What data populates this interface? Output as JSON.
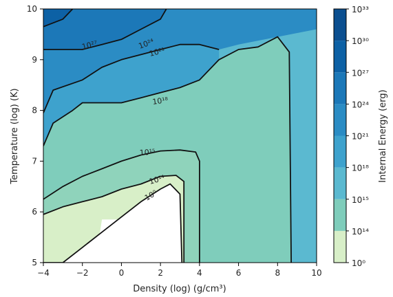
{
  "chart_data": {
    "type": "contour",
    "xlabel": "Density (log) (g/cm³)",
    "ylabel": "Temperature (log) (K)",
    "xlim": [
      -4,
      10
    ],
    "ylim": [
      5,
      10
    ],
    "xticks": [
      "−4",
      "−2",
      "0",
      "2",
      "4",
      "6",
      "8",
      "10"
    ],
    "yticks": [
      "5",
      "6",
      "7",
      "8",
      "9",
      "10"
    ],
    "colorbar": {
      "label": "Internal Energy (erg)",
      "levels": [
        "10⁰",
        "10¹⁴",
        "10¹⁵",
        "10¹⁸",
        "10²¹",
        "10²⁴",
        "10²⁷",
        "10³⁰",
        "10³³"
      ],
      "colors": [
        "#d8efc8",
        "#7fcdbb",
        "#5bb9d0",
        "#3ea2cd",
        "#2b8cc4",
        "#1c78b8",
        "#0d61a5",
        "#0b4f90"
      ]
    },
    "contour_labels": [
      "10²⁷",
      "10²⁴",
      "10²¹",
      "10¹⁸",
      "10¹⁵",
      "10¹⁴",
      "10⁰"
    ],
    "contours": [
      {
        "level": "10⁰",
        "points": [
          [
            -4,
            5.0
          ],
          [
            -3,
            5.0
          ],
          [
            -2,
            5.3
          ],
          [
            -1,
            5.6
          ],
          [
            0,
            5.9
          ],
          [
            1,
            6.2
          ],
          [
            2,
            6.45
          ],
          [
            2.5,
            6.55
          ],
          [
            3.0,
            6.35
          ],
          [
            3.1,
            5.0
          ]
        ]
      },
      {
        "level": "10¹⁴",
        "points": [
          [
            -4,
            5.95
          ],
          [
            -3,
            6.1
          ],
          [
            -2,
            6.2
          ],
          [
            -1,
            6.3
          ],
          [
            0,
            6.45
          ],
          [
            1,
            6.55
          ],
          [
            2,
            6.7
          ],
          [
            2.8,
            6.72
          ],
          [
            3.2,
            6.6
          ],
          [
            3.2,
            5.0
          ]
        ]
      },
      {
        "level": "10¹⁵",
        "points": [
          [
            -4,
            6.25
          ],
          [
            -3,
            6.5
          ],
          [
            -2,
            6.7
          ],
          [
            -1,
            6.85
          ],
          [
            0,
            7.0
          ],
          [
            1,
            7.12
          ],
          [
            2,
            7.2
          ],
          [
            3,
            7.22
          ],
          [
            3.8,
            7.18
          ],
          [
            4.0,
            7.0
          ],
          [
            4.0,
            5.0
          ]
        ]
      },
      {
        "level": "10¹⁸",
        "points": [
          [
            -4,
            7.3
          ],
          [
            -3.5,
            7.75
          ],
          [
            -2.5,
            8.0
          ],
          [
            -2,
            8.15
          ],
          [
            -1,
            8.15
          ],
          [
            0,
            8.15
          ],
          [
            1,
            8.25
          ],
          [
            2,
            8.35
          ],
          [
            3,
            8.45
          ],
          [
            4,
            8.6
          ],
          [
            5,
            9.0
          ],
          [
            6,
            9.2
          ],
          [
            7,
            9.25
          ],
          [
            8,
            9.45
          ],
          [
            8.6,
            9.15
          ],
          [
            8.7,
            5.0
          ]
        ]
      },
      {
        "level": "10²¹",
        "points": [
          [
            -4,
            7.95
          ],
          [
            -3.5,
            8.4
          ],
          [
            -2,
            8.6
          ],
          [
            -1,
            8.85
          ],
          [
            0,
            9.0
          ],
          [
            1,
            9.1
          ],
          [
            2,
            9.2
          ],
          [
            3,
            9.3
          ],
          [
            4,
            9.3
          ],
          [
            5,
            9.2
          ]
        ]
      },
      {
        "level": "10²⁴",
        "points": [
          [
            -4,
            9.2
          ],
          [
            -2,
            9.2
          ],
          [
            -1,
            9.3
          ],
          [
            0,
            9.4
          ],
          [
            1,
            9.6
          ],
          [
            2,
            9.8
          ],
          [
            2.3,
            10.0
          ]
        ]
      },
      {
        "level": "10²⁷",
        "points": [
          [
            -4,
            9.65
          ],
          [
            -3,
            9.8
          ],
          [
            -2.5,
            10.0
          ]
        ]
      }
    ]
  }
}
